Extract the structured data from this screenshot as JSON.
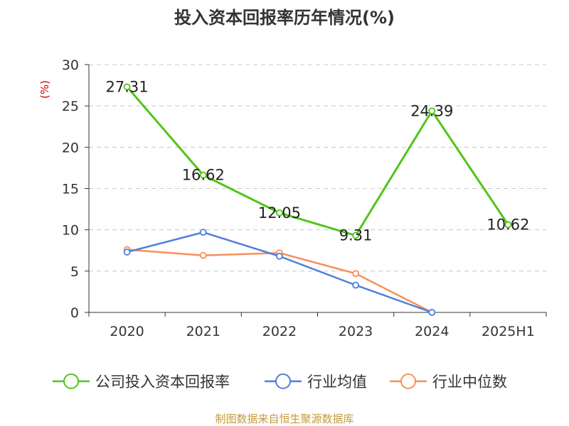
{
  "chart_data": {
    "type": "line",
    "title": "投入资本回报率历年情况(%)",
    "ylabel": "(%)",
    "categories": [
      "2020",
      "2021",
      "2022",
      "2023",
      "2024",
      "2025H1"
    ],
    "ylim": [
      0,
      30
    ],
    "yticks": [
      0,
      5,
      10,
      15,
      20,
      25,
      30
    ],
    "grid": true,
    "legend_position": "bottom",
    "series": [
      {
        "name": "公司投入资本回报率",
        "color": "#52c41a",
        "values": [
          27.31,
          16.62,
          12.05,
          9.31,
          24.39,
          10.62
        ],
        "labels": [
          "27.31",
          "16.62",
          "12.05",
          "9.31",
          "24.39",
          "10.62"
        ]
      },
      {
        "name": "行业均值",
        "color": "#4f7fdb",
        "values": [
          7.3,
          9.7,
          6.8,
          3.3,
          0.0,
          null
        ]
      },
      {
        "name": "行业中位数",
        "color": "#f7905a",
        "values": [
          7.6,
          6.9,
          7.2,
          4.7,
          0.0,
          null
        ]
      }
    ]
  },
  "footer": {
    "source": "制图数据来自恒生聚源数据库"
  }
}
